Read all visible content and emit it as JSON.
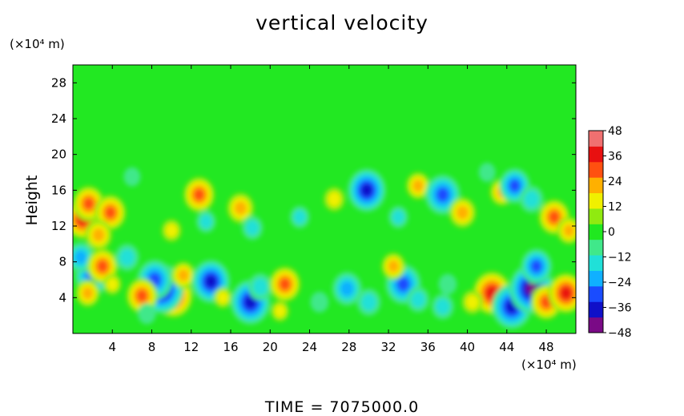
{
  "chart_data": {
    "type": "heatmap",
    "title": "vertical velocity",
    "ylabel": "Height",
    "xlabel": "",
    "x_unit": "(×10⁴ m)",
    "y_unit": "(×10⁴ m)",
    "footer": "TIME = 7075000.0",
    "xlim": [
      0,
      51
    ],
    "ylim": [
      0,
      30
    ],
    "x_ticks": [
      4,
      8,
      12,
      16,
      20,
      24,
      28,
      32,
      36,
      40,
      44,
      48
    ],
    "y_ticks": [
      4,
      8,
      12,
      16,
      20,
      24,
      28
    ],
    "colorbar": {
      "range": [
        -48,
        48
      ],
      "ticks": [
        48,
        36,
        24,
        12,
        0,
        -12,
        -24,
        -36,
        -48
      ],
      "colors": [
        "#7a0a86",
        "#1010c8",
        "#1a4cff",
        "#10b0ff",
        "#20e0d8",
        "#40e88a",
        "#20e820",
        "#90ea10",
        "#f0f000",
        "#ffb000",
        "#ff5010",
        "#e81010",
        "#f07070"
      ]
    },
    "background_value": 0,
    "features": [
      {
        "x": 10.2,
        "y": 4.2,
        "value": 40
      },
      {
        "x": 9.0,
        "y": 5.0,
        "value": -48
      },
      {
        "x": 8.3,
        "y": 6.0,
        "value": -36
      },
      {
        "x": 7.0,
        "y": 4.2,
        "value": 30
      },
      {
        "x": 7.5,
        "y": 2.2,
        "value": -12
      },
      {
        "x": 11.2,
        "y": 6.5,
        "value": 20
      },
      {
        "x": 14.0,
        "y": 5.8,
        "value": -40
      },
      {
        "x": 15.2,
        "y": 4.0,
        "value": 12
      },
      {
        "x": 18.0,
        "y": 3.5,
        "value": -42
      },
      {
        "x": 19.0,
        "y": 5.2,
        "value": -20
      },
      {
        "x": 21.5,
        "y": 5.5,
        "value": 30
      },
      {
        "x": 21.0,
        "y": 2.5,
        "value": 12
      },
      {
        "x": 25.0,
        "y": 3.5,
        "value": -12
      },
      {
        "x": 27.8,
        "y": 5.0,
        "value": -28
      },
      {
        "x": 30.0,
        "y": 3.5,
        "value": -20
      },
      {
        "x": 33.5,
        "y": 5.5,
        "value": -36
      },
      {
        "x": 32.5,
        "y": 7.5,
        "value": 20
      },
      {
        "x": 35.0,
        "y": 3.8,
        "value": -18
      },
      {
        "x": 38.0,
        "y": 5.5,
        "value": -12
      },
      {
        "x": 37.5,
        "y": 3.0,
        "value": -18
      },
      {
        "x": 42.5,
        "y": 4.5,
        "value": 40
      },
      {
        "x": 40.5,
        "y": 3.5,
        "value": 16
      },
      {
        "x": 44.5,
        "y": 3.0,
        "value": -42
      },
      {
        "x": 46.5,
        "y": 5.0,
        "value": -48
      },
      {
        "x": 47.0,
        "y": 7.5,
        "value": -30
      },
      {
        "x": 48.0,
        "y": 3.5,
        "value": 30
      },
      {
        "x": 50.0,
        "y": 4.5,
        "value": 36
      },
      {
        "x": 2.0,
        "y": 6.5,
        "value": -36
      },
      {
        "x": 0.8,
        "y": 8.5,
        "value": -24
      },
      {
        "x": 1.5,
        "y": 4.5,
        "value": 20
      },
      {
        "x": 3.0,
        "y": 7.5,
        "value": 30
      },
      {
        "x": 4.0,
        "y": 5.5,
        "value": 12
      },
      {
        "x": 5.5,
        "y": 8.5,
        "value": -20
      },
      {
        "x": 1.0,
        "y": 12.8,
        "value": 36
      },
      {
        "x": 1.6,
        "y": 14.5,
        "value": 30
      },
      {
        "x": 3.8,
        "y": 13.5,
        "value": 30
      },
      {
        "x": 2.6,
        "y": 11.0,
        "value": 24
      },
      {
        "x": 12.8,
        "y": 15.5,
        "value": 30
      },
      {
        "x": 13.5,
        "y": 12.5,
        "value": -14
      },
      {
        "x": 17.0,
        "y": 14.0,
        "value": 24
      },
      {
        "x": 18.2,
        "y": 11.8,
        "value": -16
      },
      {
        "x": 23.0,
        "y": 13.0,
        "value": -14
      },
      {
        "x": 26.5,
        "y": 15.0,
        "value": 16
      },
      {
        "x": 29.8,
        "y": 16.0,
        "value": -40
      },
      {
        "x": 33.0,
        "y": 13.0,
        "value": -14
      },
      {
        "x": 35.0,
        "y": 16.5,
        "value": 20
      },
      {
        "x": 37.5,
        "y": 15.5,
        "value": -36
      },
      {
        "x": 39.5,
        "y": 13.5,
        "value": 24
      },
      {
        "x": 43.5,
        "y": 15.8,
        "value": 20
      },
      {
        "x": 44.8,
        "y": 16.5,
        "value": -30
      },
      {
        "x": 46.5,
        "y": 15.0,
        "value": -20
      },
      {
        "x": 48.8,
        "y": 13.0,
        "value": 30
      },
      {
        "x": 50.3,
        "y": 11.5,
        "value": 20
      },
      {
        "x": 10.0,
        "y": 11.5,
        "value": 14
      },
      {
        "x": 6.0,
        "y": 17.5,
        "value": -10
      },
      {
        "x": 42.0,
        "y": 18.0,
        "value": -10
      }
    ]
  }
}
